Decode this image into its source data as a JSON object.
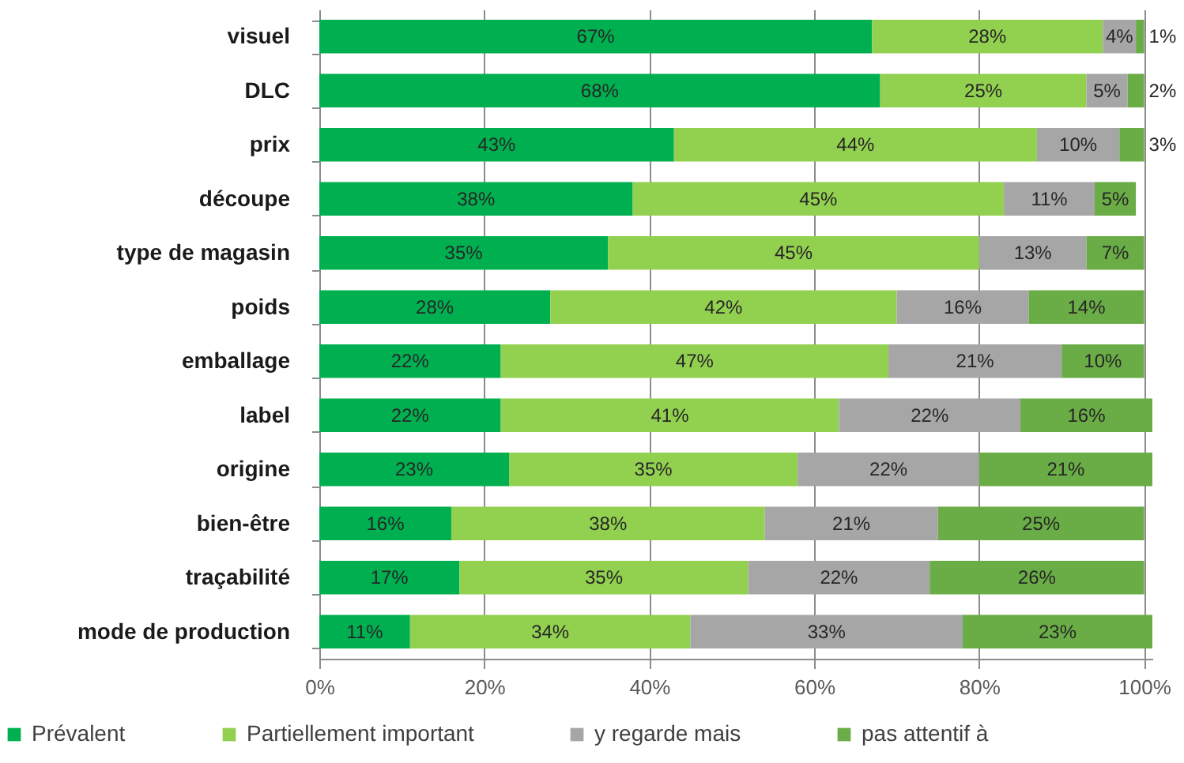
{
  "chart_data": {
    "type": "bar",
    "orientation": "horizontal",
    "stacked": true,
    "categories": [
      "visuel",
      "DLC",
      "prix",
      "découpe",
      "type de magasin",
      "poids",
      "emballage",
      "label",
      "origine",
      "bien-être",
      "traçabilité",
      "mode de production"
    ],
    "series": [
      {
        "name": "Prévalent",
        "color": "#00b050",
        "values": [
          67,
          68,
          43,
          38,
          35,
          28,
          22,
          22,
          23,
          16,
          17,
          11
        ],
        "value_labels": [
          "67%",
          "68%",
          "43%",
          "38%",
          "35%",
          "28%",
          "22%",
          "22%",
          "23%",
          "16%",
          "17%",
          "11%"
        ]
      },
      {
        "name": "Partiellement important",
        "color": "#92d050",
        "values": [
          28,
          25,
          44,
          45,
          45,
          42,
          47,
          41,
          35,
          38,
          35,
          34
        ],
        "value_labels": [
          "28%",
          "25%",
          "44%",
          "45%",
          "45%",
          "42%",
          "47%",
          "41%",
          "35%",
          "38%",
          "35%",
          "34%"
        ]
      },
      {
        "name": "y regarde mais",
        "color": "#a6a6a6",
        "values": [
          4,
          5,
          10,
          11,
          13,
          16,
          21,
          22,
          22,
          21,
          22,
          33
        ],
        "value_labels": [
          "4%",
          "5%",
          "10%",
          "11%",
          "13%",
          "16%",
          "21%",
          "22%",
          "22%",
          "21%",
          "22%",
          "33%"
        ]
      },
      {
        "name": "pas attentif à",
        "color": "#6aac46",
        "values": [
          1,
          2,
          3,
          5,
          7,
          14,
          10,
          16,
          21,
          25,
          26,
          23
        ],
        "value_labels": [
          "1%",
          "2%",
          "3%",
          "5%",
          "7%",
          "14%",
          "10%",
          "16%",
          "21%",
          "25%",
          "26%",
          "23%"
        ]
      }
    ],
    "xlim": [
      0,
      101
    ],
    "xticks": [
      {
        "value": 0,
        "label": "0%"
      },
      {
        "value": 20,
        "label": "20%"
      },
      {
        "value": 40,
        "label": "40%"
      },
      {
        "value": 60,
        "label": "60%"
      },
      {
        "value": 80,
        "label": "80%"
      },
      {
        "value": 100,
        "label": "100%"
      }
    ],
    "grid": "x",
    "legend": "bottom"
  }
}
